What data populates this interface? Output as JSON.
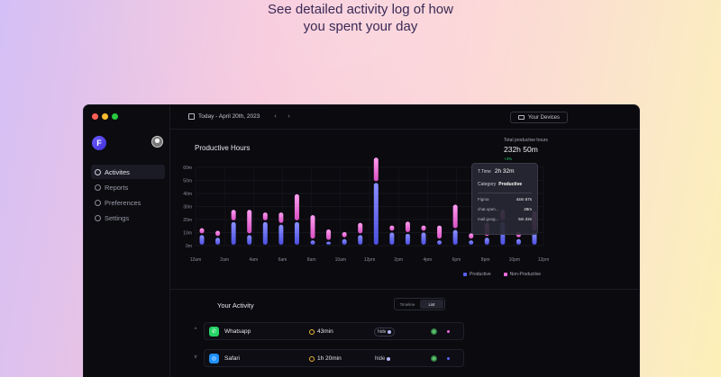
{
  "headline": {
    "line1": "See detailed activity log of how",
    "line2": "you spent your day"
  },
  "window": {
    "traffic_lights": [
      "#ff5f57",
      "#febc2e",
      "#28c840"
    ]
  },
  "sidebar": {
    "logo_letter": "F",
    "items": [
      {
        "label": "Activites",
        "icon": "activity-icon",
        "active": true
      },
      {
        "label": "Reports",
        "icon": "reports-icon",
        "active": false
      },
      {
        "label": "Preferences",
        "icon": "preferences-icon",
        "active": false
      },
      {
        "label": "Settings",
        "icon": "settings-icon",
        "active": false
      }
    ]
  },
  "topbar": {
    "date": "Today - April 20th, 2023",
    "prev": "‹",
    "next": "›",
    "devices": "Your Devices"
  },
  "chart_header": {
    "title": "Productive Hours",
    "total_label": "Total productive hours",
    "total_value": "232h 50m",
    "total_delta": "+3%"
  },
  "chart_data": {
    "type": "bar",
    "title": "Productive Hours",
    "y_ticks": [
      "60m",
      "50m",
      "40m",
      "30m",
      "20m",
      "10m",
      "0m"
    ],
    "ylim": [
      0,
      60
    ],
    "x_ticks": [
      "12am",
      "2am",
      "4am",
      "6am",
      "8am",
      "10am",
      "12pm",
      "2pm",
      "4pm",
      "6pm",
      "8pm",
      "10pm",
      "12pm"
    ],
    "grid": true,
    "legend_position": "bottom-right",
    "series": [
      {
        "name": "Productive",
        "color": "#5b63ff",
        "values": [
          8,
          6,
          18,
          8,
          18,
          16,
          18,
          4,
          3,
          5,
          8,
          48,
          10,
          9,
          10,
          4,
          12,
          4,
          6,
          18,
          5,
          10
        ]
      },
      {
        "name": "Non-Productive",
        "color": "#f06adf",
        "values": [
          4,
          4,
          8,
          18,
          6,
          8,
          20,
          18,
          8,
          4,
          8,
          18,
          4,
          8,
          4,
          10,
          18,
          4,
          10,
          8,
          4,
          15
        ]
      }
    ]
  },
  "tooltip": {
    "total_label": "T.Time",
    "total_value": "2h 32m",
    "category_label": "Category",
    "category_value": "Productive",
    "apps": [
      {
        "name": "Figma",
        "time": "44m 57s"
      },
      {
        "name": "chat.open...",
        "time": "29m"
      },
      {
        "name": "mail.goog...",
        "time": "5m 22s"
      }
    ]
  },
  "legend": {
    "productive": "Productive",
    "non_productive": "Non-Productive",
    "productive_color": "#5b63ff",
    "non_productive_color": "#f06adf"
  },
  "activity": {
    "title": "Your Activity",
    "view_toggle": [
      "Timeline",
      "List"
    ],
    "rows": [
      {
        "expand": "^",
        "app": "Whatsapp",
        "icon_color": "#25d366",
        "icon": "whatsapp-icon",
        "time": "43min",
        "hide": "hide",
        "category_color": "#f06adf"
      },
      {
        "expand": "v",
        "app": "Safari",
        "icon_color": "#1e90ff",
        "icon": "safari-icon",
        "time": "1h 20min",
        "hide": "hide",
        "category_color": "#5b63ff"
      }
    ]
  }
}
